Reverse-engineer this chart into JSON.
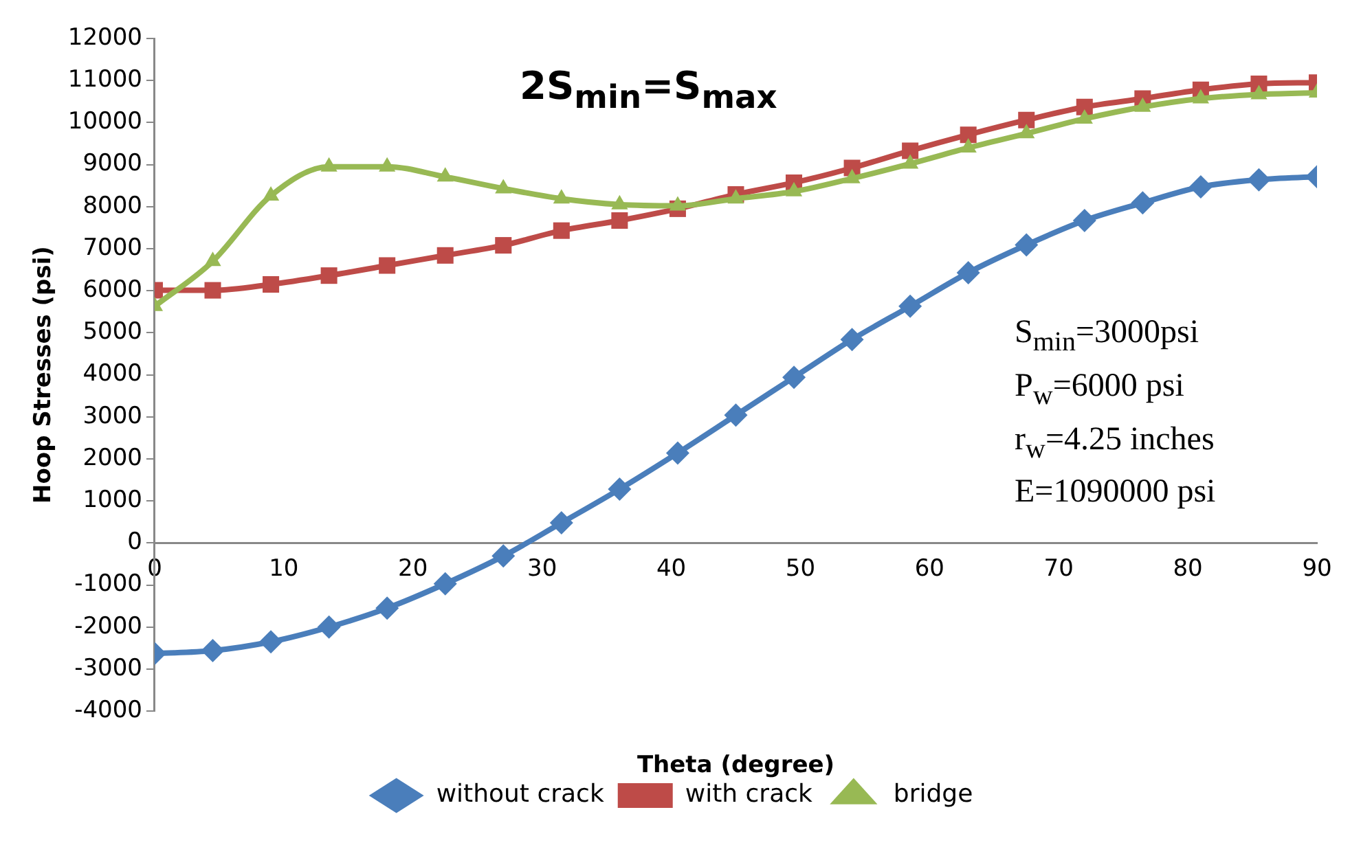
{
  "chart_data": {
    "type": "line",
    "title": "2S$_{min}$=S$_{max}$",
    "xlabel": "Theta (degree)",
    "ylabel": "Hoop Stresses (psi)",
    "x": [
      0,
      4.5,
      9,
      13.5,
      18,
      22.5,
      27,
      31.5,
      36,
      40.5,
      45,
      49.5,
      54,
      58.5,
      63,
      67.5,
      72,
      76.5,
      81,
      85.5,
      90
    ],
    "series": [
      {
        "name": "without crack",
        "color": "#4a7ebb",
        "marker": "diamond",
        "values": [
          -2630,
          -2560,
          -2350,
          -2000,
          -1550,
          -970,
          -310,
          480,
          1280,
          2140,
          3040,
          3940,
          4840,
          5630,
          6430,
          7090,
          7670,
          8090,
          8470,
          8640,
          8710
        ]
      },
      {
        "name": "with crack",
        "color": "#be4b48",
        "marker": "square",
        "values": [
          6010,
          6010,
          6150,
          6360,
          6600,
          6840,
          7080,
          7430,
          7670,
          7950,
          8290,
          8570,
          8920,
          9330,
          9710,
          10060,
          10370,
          10570,
          10780,
          10920,
          10950
        ]
      },
      {
        "name": "bridge",
        "color": "#98b954",
        "marker": "triangle",
        "values": [
          5630,
          6700,
          8260,
          8950,
          8950,
          8710,
          8430,
          8190,
          8050,
          8020,
          8190,
          8360,
          8670,
          9020,
          9400,
          9740,
          10090,
          10370,
          10570,
          10670,
          10710
        ]
      }
    ],
    "xlim": [
      0,
      90
    ],
    "xticks": [
      0,
      10,
      20,
      30,
      40,
      50,
      60,
      70,
      80,
      90
    ],
    "ylim": [
      -4000,
      12000
    ],
    "yticks": [
      -4000,
      -3000,
      -2000,
      -1000,
      0,
      1000,
      2000,
      3000,
      4000,
      5000,
      6000,
      7000,
      8000,
      9000,
      10000,
      11000,
      12000
    ],
    "grid": false,
    "legend": "bottom",
    "line_style": "solid",
    "annotations": [
      "S$_{min}$=3000psi",
      "P$_{w}$=6000 psi",
      "r$_{w}$=4.25 inches",
      "E=1090000 psi"
    ]
  }
}
